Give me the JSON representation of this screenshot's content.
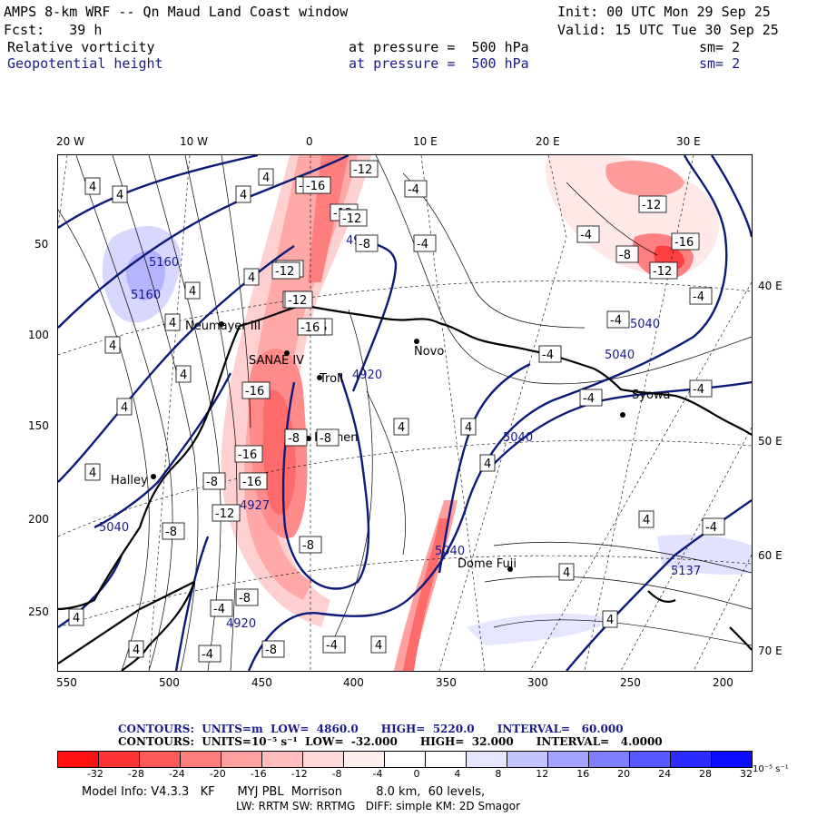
{
  "header": {
    "model_title": "AMPS 8-km WRF -- Qn Maud Land Coast window",
    "init": "Init: 00 UTC Mon 29 Sep 25",
    "fcst": "Fcst:   39 h",
    "valid": "Valid: 15 UTC Tue 30 Sep 25",
    "field1": {
      "name": "Relative vorticity",
      "level": "at pressure =  500 hPa",
      "smooth": "sm= 2"
    },
    "field2": {
      "name": "Geopotential height",
      "level": "at pressure =  500 hPa",
      "smooth": "sm= 2"
    }
  },
  "axes": {
    "top_lon_labels": [
      "20 W",
      "10 W",
      "0",
      "10 E",
      "20 E",
      "30 E"
    ],
    "left_y_labels": [
      "50",
      "100",
      "150",
      "200",
      "250"
    ],
    "bottom_x_labels": [
      "550",
      "500",
      "450",
      "400",
      "350",
      "300",
      "250",
      "200"
    ],
    "right_lon_labels": [
      "40 E",
      "50 E",
      "60 E",
      "70 E"
    ]
  },
  "map": {
    "places": [
      "Neumayer III",
      "SANAE IV",
      "Troll",
      "Halley",
      "Novo",
      "Syowa",
      "Kohnen",
      "Dome Fuji"
    ],
    "height_labels": [
      "4920",
      "4920",
      "5160",
      "5160",
      "5040",
      "5040",
      "5040",
      "5040",
      "5040",
      "4927",
      "4920",
      "5137"
    ],
    "vort_labels_pos": [
      "4"
    ],
    "vort_labels_neg": [
      "-4",
      "-8",
      "-12",
      "-16",
      "-12",
      "-16",
      "-8"
    ],
    "colors": {
      "height_contour": "#0d1a7a",
      "coast": "#000000",
      "neg_vort": "#ff3030",
      "pos_vort": "#8080ff"
    }
  },
  "contour_info": {
    "line1": "CONTOURS:  UNITS=m  LOW=  4860.0      HIGH=  5220.0      INTERVAL=   60.000",
    "line2": "CONTOURS:  UNITS=10⁻⁵ s⁻¹  LOW=  -32.000      HIGH=  32.000      INTERVAL=   4.0000"
  },
  "colorbar": {
    "colors": [
      "#ff1010",
      "#ff3535",
      "#ff5a5a",
      "#ff7f7f",
      "#ffa0a0",
      "#ffbdbd",
      "#ffd8d8",
      "#ffeeee",
      "#ffffff",
      "#ffffff",
      "#e6e6ff",
      "#c4c4ff",
      "#a2a2ff",
      "#7f7fff",
      "#5858ff",
      "#2c2cff",
      "#0c0cff"
    ],
    "labels": [
      "-32",
      "-28",
      "-24",
      "-20",
      "-16",
      "-12",
      "-8",
      "-4",
      "0",
      "4",
      "8",
      "12",
      "16",
      "20",
      "24",
      "28",
      "32"
    ],
    "units": "10⁻⁵ s⁻¹"
  },
  "model_info": {
    "line1": "Model Info: V4.3.3   KF      MYJ PBL  Morrison         8.0 km,  60 levels,",
    "line2": "LW: RRTM SW: RRTMG   DIFF: simple KM: 2D Smagor"
  }
}
